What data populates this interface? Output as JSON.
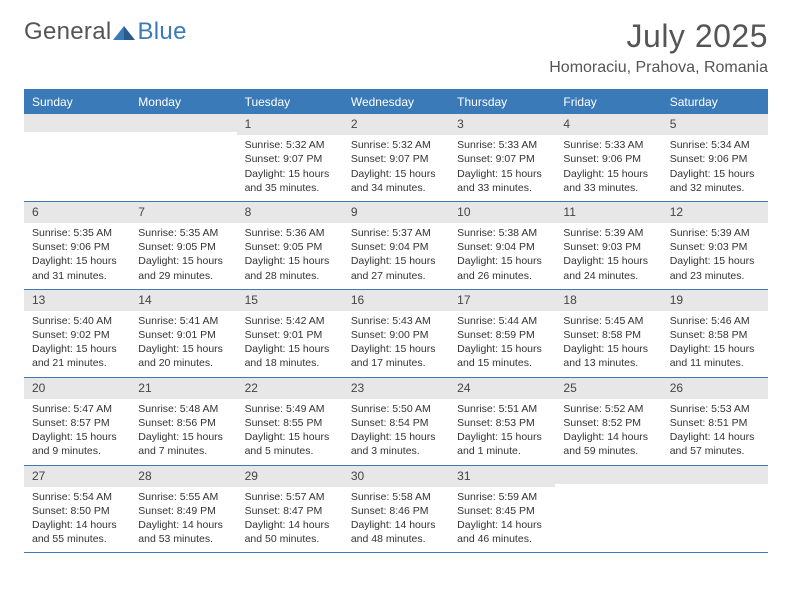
{
  "brand": {
    "part1": "General",
    "part2": "Blue"
  },
  "title": "July 2025",
  "location": "Homoraciu, Prahova, Romania",
  "colors": {
    "accent": "#3a7ab8",
    "header_bg": "#3a7ab8",
    "header_text": "#ffffff",
    "daynum_bg": "#e7e7e7",
    "text": "#333333",
    "title_text": "#555555",
    "page_bg": "#ffffff"
  },
  "day_names": [
    "Sunday",
    "Monday",
    "Tuesday",
    "Wednesday",
    "Thursday",
    "Friday",
    "Saturday"
  ],
  "weeks": [
    [
      null,
      null,
      {
        "n": "1",
        "sr": "Sunrise: 5:32 AM",
        "ss": "Sunset: 9:07 PM",
        "dl": "Daylight: 15 hours and 35 minutes."
      },
      {
        "n": "2",
        "sr": "Sunrise: 5:32 AM",
        "ss": "Sunset: 9:07 PM",
        "dl": "Daylight: 15 hours and 34 minutes."
      },
      {
        "n": "3",
        "sr": "Sunrise: 5:33 AM",
        "ss": "Sunset: 9:07 PM",
        "dl": "Daylight: 15 hours and 33 minutes."
      },
      {
        "n": "4",
        "sr": "Sunrise: 5:33 AM",
        "ss": "Sunset: 9:06 PM",
        "dl": "Daylight: 15 hours and 33 minutes."
      },
      {
        "n": "5",
        "sr": "Sunrise: 5:34 AM",
        "ss": "Sunset: 9:06 PM",
        "dl": "Daylight: 15 hours and 32 minutes."
      }
    ],
    [
      {
        "n": "6",
        "sr": "Sunrise: 5:35 AM",
        "ss": "Sunset: 9:06 PM",
        "dl": "Daylight: 15 hours and 31 minutes."
      },
      {
        "n": "7",
        "sr": "Sunrise: 5:35 AM",
        "ss": "Sunset: 9:05 PM",
        "dl": "Daylight: 15 hours and 29 minutes."
      },
      {
        "n": "8",
        "sr": "Sunrise: 5:36 AM",
        "ss": "Sunset: 9:05 PM",
        "dl": "Daylight: 15 hours and 28 minutes."
      },
      {
        "n": "9",
        "sr": "Sunrise: 5:37 AM",
        "ss": "Sunset: 9:04 PM",
        "dl": "Daylight: 15 hours and 27 minutes."
      },
      {
        "n": "10",
        "sr": "Sunrise: 5:38 AM",
        "ss": "Sunset: 9:04 PM",
        "dl": "Daylight: 15 hours and 26 minutes."
      },
      {
        "n": "11",
        "sr": "Sunrise: 5:39 AM",
        "ss": "Sunset: 9:03 PM",
        "dl": "Daylight: 15 hours and 24 minutes."
      },
      {
        "n": "12",
        "sr": "Sunrise: 5:39 AM",
        "ss": "Sunset: 9:03 PM",
        "dl": "Daylight: 15 hours and 23 minutes."
      }
    ],
    [
      {
        "n": "13",
        "sr": "Sunrise: 5:40 AM",
        "ss": "Sunset: 9:02 PM",
        "dl": "Daylight: 15 hours and 21 minutes."
      },
      {
        "n": "14",
        "sr": "Sunrise: 5:41 AM",
        "ss": "Sunset: 9:01 PM",
        "dl": "Daylight: 15 hours and 20 minutes."
      },
      {
        "n": "15",
        "sr": "Sunrise: 5:42 AM",
        "ss": "Sunset: 9:01 PM",
        "dl": "Daylight: 15 hours and 18 minutes."
      },
      {
        "n": "16",
        "sr": "Sunrise: 5:43 AM",
        "ss": "Sunset: 9:00 PM",
        "dl": "Daylight: 15 hours and 17 minutes."
      },
      {
        "n": "17",
        "sr": "Sunrise: 5:44 AM",
        "ss": "Sunset: 8:59 PM",
        "dl": "Daylight: 15 hours and 15 minutes."
      },
      {
        "n": "18",
        "sr": "Sunrise: 5:45 AM",
        "ss": "Sunset: 8:58 PM",
        "dl": "Daylight: 15 hours and 13 minutes."
      },
      {
        "n": "19",
        "sr": "Sunrise: 5:46 AM",
        "ss": "Sunset: 8:58 PM",
        "dl": "Daylight: 15 hours and 11 minutes."
      }
    ],
    [
      {
        "n": "20",
        "sr": "Sunrise: 5:47 AM",
        "ss": "Sunset: 8:57 PM",
        "dl": "Daylight: 15 hours and 9 minutes."
      },
      {
        "n": "21",
        "sr": "Sunrise: 5:48 AM",
        "ss": "Sunset: 8:56 PM",
        "dl": "Daylight: 15 hours and 7 minutes."
      },
      {
        "n": "22",
        "sr": "Sunrise: 5:49 AM",
        "ss": "Sunset: 8:55 PM",
        "dl": "Daylight: 15 hours and 5 minutes."
      },
      {
        "n": "23",
        "sr": "Sunrise: 5:50 AM",
        "ss": "Sunset: 8:54 PM",
        "dl": "Daylight: 15 hours and 3 minutes."
      },
      {
        "n": "24",
        "sr": "Sunrise: 5:51 AM",
        "ss": "Sunset: 8:53 PM",
        "dl": "Daylight: 15 hours and 1 minute."
      },
      {
        "n": "25",
        "sr": "Sunrise: 5:52 AM",
        "ss": "Sunset: 8:52 PM",
        "dl": "Daylight: 14 hours and 59 minutes."
      },
      {
        "n": "26",
        "sr": "Sunrise: 5:53 AM",
        "ss": "Sunset: 8:51 PM",
        "dl": "Daylight: 14 hours and 57 minutes."
      }
    ],
    [
      {
        "n": "27",
        "sr": "Sunrise: 5:54 AM",
        "ss": "Sunset: 8:50 PM",
        "dl": "Daylight: 14 hours and 55 minutes."
      },
      {
        "n": "28",
        "sr": "Sunrise: 5:55 AM",
        "ss": "Sunset: 8:49 PM",
        "dl": "Daylight: 14 hours and 53 minutes."
      },
      {
        "n": "29",
        "sr": "Sunrise: 5:57 AM",
        "ss": "Sunset: 8:47 PM",
        "dl": "Daylight: 14 hours and 50 minutes."
      },
      {
        "n": "30",
        "sr": "Sunrise: 5:58 AM",
        "ss": "Sunset: 8:46 PM",
        "dl": "Daylight: 14 hours and 48 minutes."
      },
      {
        "n": "31",
        "sr": "Sunrise: 5:59 AM",
        "ss": "Sunset: 8:45 PM",
        "dl": "Daylight: 14 hours and 46 minutes."
      },
      null,
      null
    ]
  ]
}
